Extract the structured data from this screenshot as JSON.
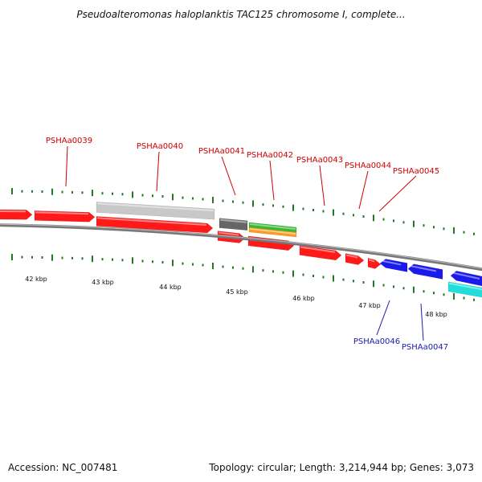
{
  "title": "Pseudoalteromonas haloplanktis TAC125 chromosome I, complete...",
  "footer": {
    "accession": "Accession: NC_007481",
    "topology": "Topology: circular; Length: 3,214,944 bp; Genes: 3,073"
  },
  "colors": {
    "forward_label": "#cc0000",
    "reverse_label": "#1a1aaa",
    "tick": "#227722",
    "backbone": "#777777",
    "red_gene": "#ff1a1a",
    "blue_gene": "#1a1aee",
    "light_gray": "#c8c8c8",
    "dark_gray": "#666666",
    "green": "#33bb33",
    "orange": "#f5a020",
    "cyan": "#22dddd"
  },
  "kbp_labels": [
    "42 kbp",
    "43 kbp",
    "44 kbp",
    "45 kbp",
    "46 kbp",
    "47 kbp",
    "48 kbp"
  ],
  "gene_labels": {
    "forward": [
      "PSHAa0039",
      "PSHAa0040",
      "PSHAa0041",
      "PSHAa0042",
      "PSHAa0043",
      "PSHAa0044",
      "PSHAa0045"
    ],
    "reverse": [
      "PSHAa0046",
      "PSHAa0047"
    ]
  }
}
